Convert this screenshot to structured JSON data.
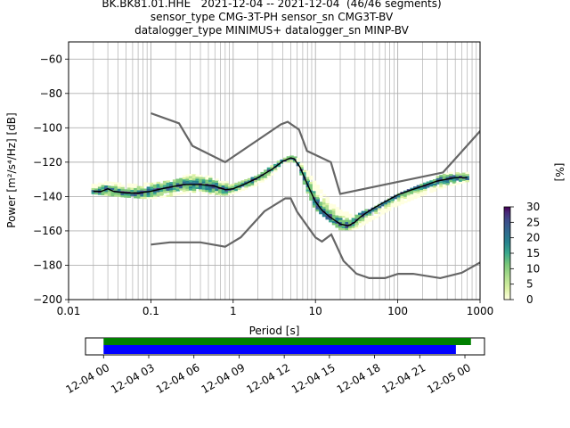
{
  "header": {
    "line1": "BK.BK81.01.HHE   2021-12-04 -- 2021-12-04  (46/46 segments)",
    "line2": "sensor_type CMG-3T-PH sensor_sn CMG3T-BV",
    "line3": "datalogger_type MINIMUS+ datalogger_sn MINP-BV"
  },
  "colors": {
    "grid": "#b0b0b0",
    "noise_model": "#666666",
    "mode_line": "#000000",
    "coverage_top": "#008000",
    "coverage_bottom": "#0000ff",
    "colormap": [
      "#ffffe0",
      "#d9f0a3",
      "#addd8e",
      "#78c679",
      "#3aa88c",
      "#26828e",
      "#31688e",
      "#3e4a89",
      "#482878",
      "#440154"
    ]
  },
  "chart_data": [
    {
      "type": "heatmap",
      "title": "",
      "xlabel": "Period [s]",
      "ylabel": "Power [m²/s⁴/Hz] [dB]",
      "x_scale": "log",
      "xlim": [
        0.01,
        1000
      ],
      "ylim": [
        -200,
        -50
      ],
      "x_ticks": [
        0.01,
        0.1,
        1,
        10,
        100,
        1000
      ],
      "x_tick_labels": [
        "0.01",
        "0.1",
        "1",
        "10",
        "100",
        "1000"
      ],
      "y_ticks": [
        -200,
        -180,
        -160,
        -140,
        -120,
        -100,
        -80,
        -60
      ],
      "y_tick_labels": [
        "−200",
        "−180",
        "−160",
        "−140",
        "−120",
        "−100",
        "−80",
        "−60"
      ],
      "grid": true,
      "colorbar": {
        "label": "[%]",
        "range": [
          0,
          30
        ],
        "ticks": [
          0,
          5,
          10,
          15,
          20,
          25,
          30
        ],
        "tick_labels": [
          "0",
          "5",
          "10",
          "15",
          "20",
          "25",
          "30"
        ]
      },
      "series": [
        {
          "kind": "noise-model-high",
          "x": [
            0.1,
            0.22,
            0.32,
            0.8,
            3.8,
            4.6,
            6.3,
            7.9,
            15.4,
            20,
            354.8,
            10000
          ],
          "y": [
            -91.5,
            -97.4,
            -110.5,
            -120,
            -98,
            -96.5,
            -101,
            -113.5,
            -120,
            -138.5,
            -126,
            -48.5
          ]
        },
        {
          "kind": "noise-model-low",
          "x": [
            0.1,
            0.17,
            0.4,
            0.8,
            1.24,
            2.4,
            4.3,
            5,
            6,
            10,
            12,
            15.6,
            21.9,
            31.6,
            45,
            70,
            101,
            154,
            328,
            600,
            10000
          ],
          "y": [
            -168,
            -166.7,
            -166.7,
            -169.2,
            -163.7,
            -148.6,
            -141.1,
            -141.1,
            -149,
            -163.8,
            -166.2,
            -162.1,
            -177.5,
            -185,
            -187.5,
            -187.5,
            -185,
            -185,
            -187.5,
            -184.4,
            -151.5
          ]
        },
        {
          "kind": "mode",
          "x": [
            0.02,
            0.025,
            0.03,
            0.035,
            0.05,
            0.07,
            0.1,
            0.15,
            0.25,
            0.4,
            0.6,
            0.8,
            1,
            1.5,
            2,
            3,
            4,
            5,
            5.5,
            6.5,
            8,
            10,
            12,
            15,
            20,
            25,
            30,
            35,
            40,
            50,
            70,
            100,
            150,
            200,
            300,
            500,
            700
          ],
          "y": [
            -137,
            -137,
            -135.5,
            -137,
            -138,
            -138,
            -137,
            -135,
            -133,
            -133,
            -134,
            -136,
            -135.5,
            -132,
            -129,
            -124,
            -119.5,
            -117.5,
            -118,
            -123,
            -133,
            -143,
            -148,
            -152,
            -156,
            -157,
            -155,
            -152,
            -150,
            -147,
            -143,
            -139,
            -136,
            -134,
            -131,
            -129,
            -129
          ]
        },
        {
          "kind": "density-upper-envelope",
          "x": [
            0.02,
            0.03,
            0.05,
            0.1,
            0.2,
            0.3,
            0.5,
            0.8,
            1,
            2,
            3,
            4,
            5,
            6,
            8,
            10,
            15,
            20,
            30,
            50,
            100,
            200,
            400,
            700
          ],
          "y": [
            -133,
            -131,
            -133,
            -132,
            -130,
            -127,
            -128,
            -131,
            -133,
            -127,
            -122,
            -118,
            -116.5,
            -117,
            -125,
            -132,
            -142,
            -148,
            -151,
            -146,
            -138,
            -133,
            -126,
            -126
          ]
        },
        {
          "kind": "density-lower-envelope",
          "x": [
            0.02,
            0.03,
            0.05,
            0.1,
            0.2,
            0.3,
            0.5,
            0.8,
            1,
            2,
            3,
            4,
            5,
            6,
            8,
            10,
            15,
            20,
            30,
            50,
            100,
            200,
            400,
            700
          ],
          "y": [
            -138,
            -139,
            -140,
            -141,
            -139,
            -137,
            -138,
            -139,
            -138,
            -133,
            -127,
            -121,
            -119,
            -120,
            -137,
            -147,
            -154,
            -159,
            -159,
            -153,
            -145,
            -139,
            -134,
            -131
          ]
        }
      ]
    },
    {
      "type": "bar",
      "title": "",
      "xlabel": "",
      "ylabel": "",
      "x_ticks": [
        "12-04 00",
        "12-04 03",
        "12-04 06",
        "12-04 09",
        "12-04 12",
        "12-04 15",
        "12-04 18",
        "12-04 21",
        "12-05 00"
      ],
      "x_range_hours": [
        -1.2,
        25.3
      ],
      "series": [
        {
          "name": "",
          "start_hour": 0,
          "end_hour": 24.4
        },
        {
          "name": "",
          "start_hour": 0,
          "end_hour": 23.4
        }
      ]
    }
  ]
}
